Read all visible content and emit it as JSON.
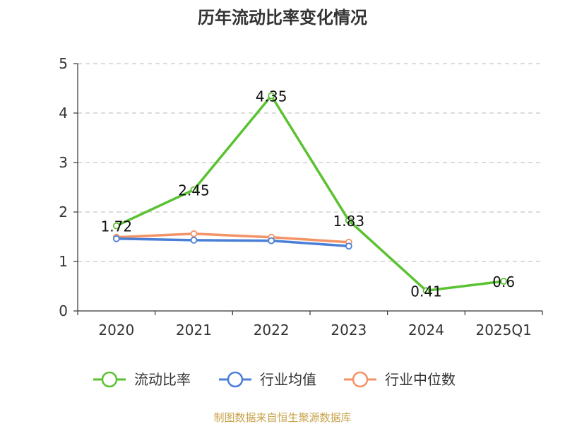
{
  "title": "历年流动比率变化情况",
  "source": "制图数据来自恒生聚源数据库",
  "chart_data": {
    "type": "line",
    "title": "历年流动比率变化情况",
    "categories": [
      "2020",
      "2021",
      "2022",
      "2023",
      "2024",
      "2025Q1"
    ],
    "ylim": [
      0,
      5
    ],
    "yticks": [
      "0",
      "1",
      "2",
      "3",
      "4",
      "5"
    ],
    "grid": true,
    "legend_position": "bottom",
    "series": [
      {
        "name": "流动比率",
        "color": "#5ac231",
        "values": [
          1.72,
          2.45,
          4.35,
          1.83,
          0.41,
          0.6
        ],
        "labels": [
          "1.72",
          "2.45",
          "4.35",
          "1.83",
          "0.41",
          "0.6"
        ]
      },
      {
        "name": "行业均值",
        "color": "#4a7fd8",
        "values": [
          1.46,
          1.43,
          1.42,
          1.31,
          null,
          null
        ]
      },
      {
        "name": "行业中位数",
        "color": "#f39366",
        "values": [
          1.49,
          1.56,
          1.49,
          1.39,
          null,
          null
        ]
      }
    ]
  }
}
